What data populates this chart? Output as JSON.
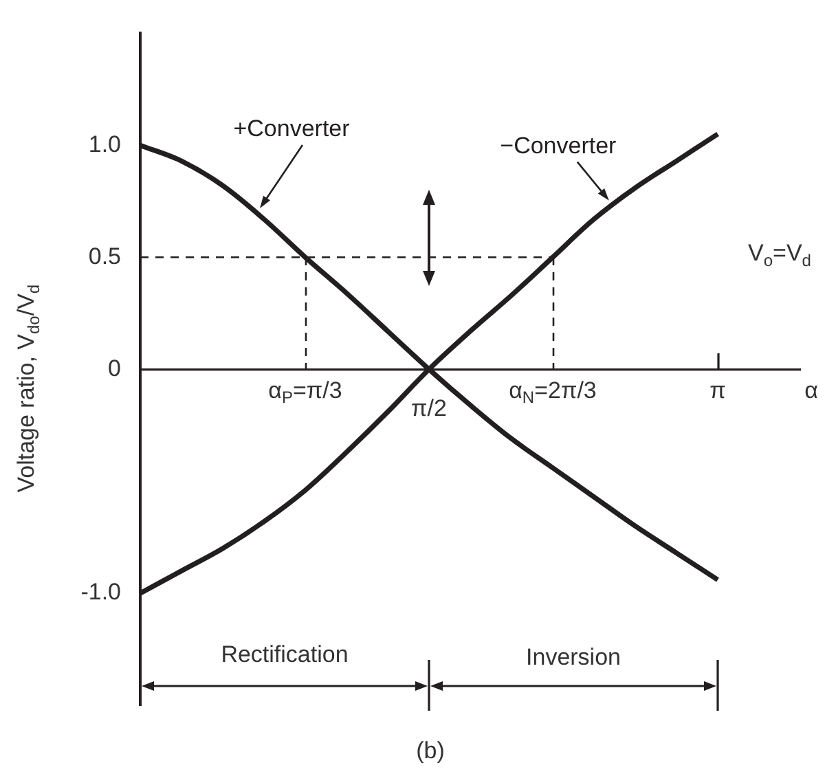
{
  "chart_data": {
    "type": "line",
    "xlabel": "α",
    "ylabel": "Voltage ratio, V$_{do}$/V$_{d}$",
    "categories": [
      null,
      null,
      null,
      null,
      "α$_{P}$=π/3",
      null,
      null,
      "π/2",
      null,
      null,
      "α$_{N}$=2π/3",
      null,
      null,
      null,
      "π",
      null,
      null
    ],
    "ylim": [
      -1.5,
      1.5
    ],
    "yticks": [
      {
        "value": 1,
        "label": "1.0"
      },
      0.5,
      0,
      {
        "value": -1,
        "label": "-1.0"
      }
    ],
    "marker": "none",
    "line_style": "solid",
    "series": [
      {
        "name": "+Converter",
        "color": "#231f20",
        "values": [
          1.0,
          0.93,
          0.82,
          0.67,
          0.5,
          0.34,
          0.17,
          0,
          -0.16,
          -0.31,
          -0.44,
          -0.57,
          -0.7,
          -0.82,
          -0.94,
          null,
          null
        ]
      },
      {
        "name": "−Converter",
        "color": "#231f20",
        "values": [
          -1.0,
          -0.9,
          -0.8,
          -0.68,
          -0.54,
          -0.37,
          -0.19,
          0,
          0.17,
          0.33,
          0.5,
          0.67,
          0.81,
          0.93,
          1.05,
          null,
          null
        ]
      },
      {
        "color": "#231f20",
        "line_style": "dashed",
        "values": [
          0.5,
          0.5,
          0.5,
          0.5,
          0.5,
          0.5,
          0.5,
          0.5,
          0.5,
          0.5,
          0.5,
          null,
          null,
          null,
          null,
          null,
          null
        ]
      }
    ],
    "annotations": [
      "V$_{o}$=V$_{d}$",
      "Rectification",
      "Inversion",
      "(b)"
    ]
  }
}
